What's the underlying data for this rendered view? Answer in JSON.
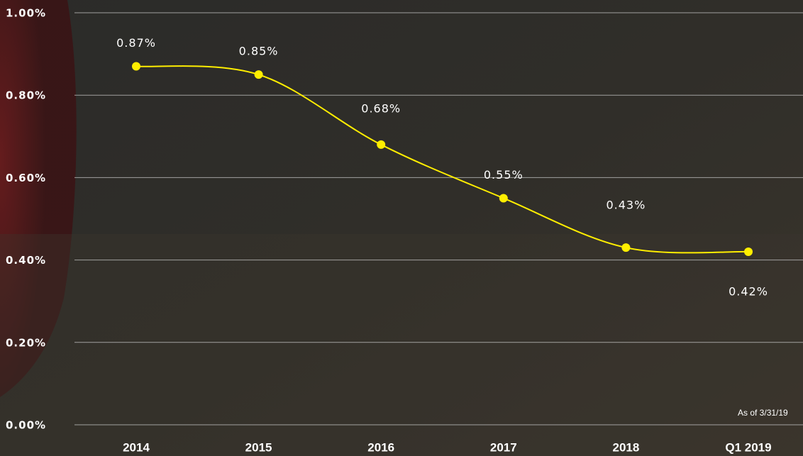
{
  "chart_data": {
    "type": "line",
    "categories": [
      "2014",
      "2015",
      "2016",
      "2017",
      "2018",
      "Q1 2019"
    ],
    "series": [
      {
        "color": "#ffee00",
        "values": [
          0.87,
          0.85,
          0.68,
          0.55,
          0.43,
          0.42
        ],
        "value_labels": [
          "0.87%",
          "0.85%",
          "0.68%",
          "0.55%",
          "0.43%",
          "0.42%"
        ]
      }
    ],
    "ylim": [
      0,
      1
    ],
    "yticks": [
      {
        "value": 0,
        "label": "0.00%"
      },
      {
        "value": 0.2,
        "label": "0.20%"
      },
      {
        "value": 0.4,
        "label": "0.40%"
      },
      {
        "value": 0.6,
        "label": "0.60%"
      },
      {
        "value": 0.8,
        "label": "0.80%"
      },
      {
        "value": 1,
        "label": "1.00%"
      }
    ],
    "grid": true,
    "annotation": "As of 3/31/19"
  }
}
